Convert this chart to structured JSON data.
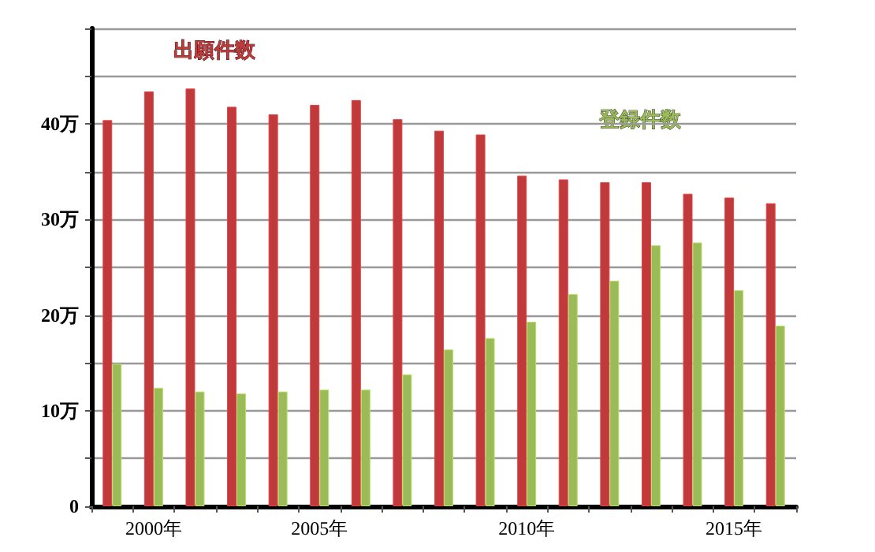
{
  "chart_data": {
    "type": "bar",
    "categories": [
      null,
      "2000年",
      null,
      null,
      null,
      "2005年",
      null,
      null,
      null,
      null,
      "2010年",
      null,
      null,
      null,
      null,
      "2015年",
      null
    ],
    "series": [
      {
        "name": "出願件数",
        "color": "#c0393b",
        "values": [
          40.4,
          43.4,
          43.7,
          41.8,
          41.0,
          42.0,
          42.5,
          40.5,
          39.3,
          38.9,
          34.6,
          34.2,
          33.9,
          33.9,
          32.7,
          32.3,
          31.7
        ]
      },
      {
        "name": "登録件数",
        "color": "#9bbb59",
        "values": [
          14.9,
          12.4,
          12.0,
          11.8,
          12.0,
          12.2,
          12.2,
          13.8,
          16.4,
          17.6,
          19.3,
          22.2,
          23.6,
          27.3,
          27.6,
          22.6,
          18.9
        ]
      }
    ],
    "ylim": [
      0,
      50
    ],
    "yticks": [
      0,
      {
        "value": 5,
        "label": null
      },
      {
        "value": 10,
        "label": "10万"
      },
      {
        "value": 15,
        "label": null
      },
      {
        "value": 20,
        "label": "20万"
      },
      {
        "value": 25,
        "label": null
      },
      {
        "value": 30,
        "label": "30万"
      },
      {
        "value": 35,
        "label": null
      },
      {
        "value": 40,
        "label": "40万"
      },
      {
        "value": 45,
        "label": null
      },
      {
        "value": 50,
        "label": null
      }
    ],
    "grid": "y",
    "legend": false
  }
}
